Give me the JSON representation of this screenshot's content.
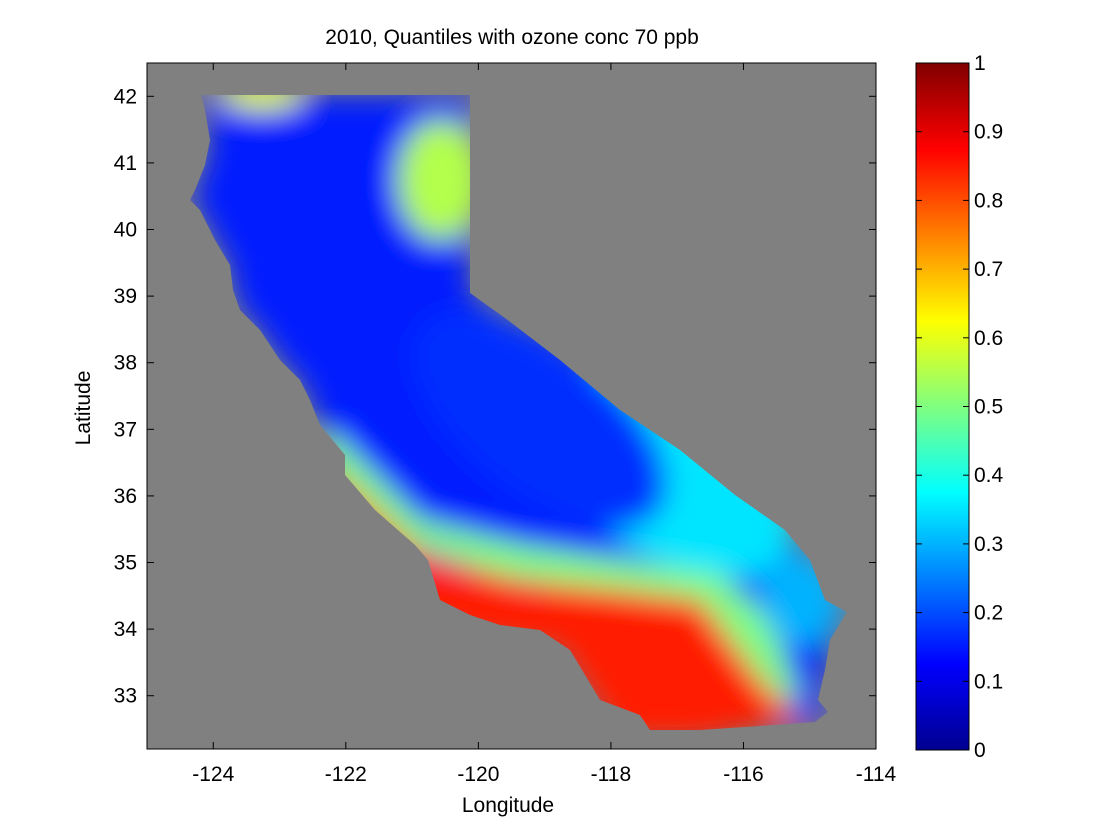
{
  "chart_data": {
    "type": "heatmap",
    "title": "2010, Quantiles with ozone conc 70 ppb",
    "xlabel": "Longitude",
    "ylabel": "Latitude",
    "xlim": [
      -125,
      -114
    ],
    "ylim": [
      32.2,
      42.5
    ],
    "xticks": [
      -124,
      -122,
      -120,
      -118,
      -116,
      -114
    ],
    "yticks": [
      33,
      34,
      35,
      36,
      37,
      38,
      39,
      40,
      41,
      42
    ],
    "colorbar": {
      "range": [
        0,
        1
      ],
      "ticks": [
        0,
        0.1,
        0.2,
        0.3,
        0.4,
        0.5,
        0.6,
        0.7,
        0.8,
        0.9,
        1
      ],
      "colormap": "jet"
    },
    "background_color": "#808080",
    "region": "California",
    "value_pattern": [
      {
        "area": "Northern California & Central Valley",
        "approx_value": 0.15
      },
      {
        "area": "Northeast plateau near -120.5, 40.7",
        "approx_value": 0.55
      },
      {
        "area": "Northern coast near -123, 42",
        "approx_value": 0.6
      },
      {
        "area": "Southern California coast",
        "approx_value": 0.85
      },
      {
        "area": "Transition band near 35N",
        "approx_value": 0.5
      },
      {
        "area": "Southeast desert near -115, 34.2",
        "approx_value": 0.3
      }
    ]
  }
}
